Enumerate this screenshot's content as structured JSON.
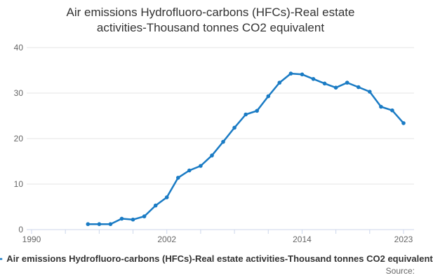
{
  "title_lines": [
    "Air emissions Hydrofluoro-carbons (HFCs)-Real estate",
    "activities-Thousand tonnes CO2 equivalent"
  ],
  "chart_data": {
    "type": "line",
    "title": "Air emissions Hydrofluoro-carbons (HFCs)-Real estate activities-Thousand tonnes CO2 equivalent",
    "series": [
      {
        "name": "Air emissions Hydrofluoro-carbons (HFCs)-Real estate activities-Thousand tonnes CO2 equivalent",
        "x": [
          1995,
          1996,
          1997,
          1998,
          1999,
          2000,
          2001,
          2002,
          2003,
          2004,
          2005,
          2006,
          2007,
          2008,
          2009,
          2010,
          2011,
          2012,
          2013,
          2014,
          2015,
          2016,
          2017,
          2018,
          2019,
          2020,
          2021,
          2022,
          2023
        ],
        "values": [
          1.2,
          1.2,
          1.2,
          2.4,
          2.2,
          2.9,
          5.3,
          7.1,
          11.4,
          13.0,
          14.0,
          16.3,
          19.3,
          22.4,
          25.3,
          26.1,
          29.3,
          32.3,
          34.3,
          34.1,
          33.1,
          32.1,
          31.2,
          32.3,
          31.3,
          30.3,
          27.0,
          26.2,
          23.4
        ]
      }
    ],
    "xlabel": "",
    "ylabel": "",
    "xlim": [
      1990,
      2023
    ],
    "ylim": [
      0,
      40
    ],
    "yticks": [
      0,
      10,
      20,
      30,
      40
    ],
    "xticks": [
      1990,
      1993,
      1996,
      1999,
      2002,
      2005,
      2008,
      2011,
      2014,
      2017,
      2020,
      2023
    ],
    "xtick_labels_shown": [
      1990,
      2002,
      2014,
      2023
    ],
    "grid": true,
    "legend_position": "bottom"
  },
  "footer": {
    "legend_label": "Air emissions Hydrofluoro-carbons (HFCs)-Real estate activities-Thousand tonnes CO2 equivalent",
    "source_label": "Source:"
  },
  "colors": {
    "line": "#1a7bc4",
    "grid": "#e6e6e6",
    "axis": "#ccd6eb",
    "tick_text": "#666666",
    "title_text": "#333333"
  }
}
